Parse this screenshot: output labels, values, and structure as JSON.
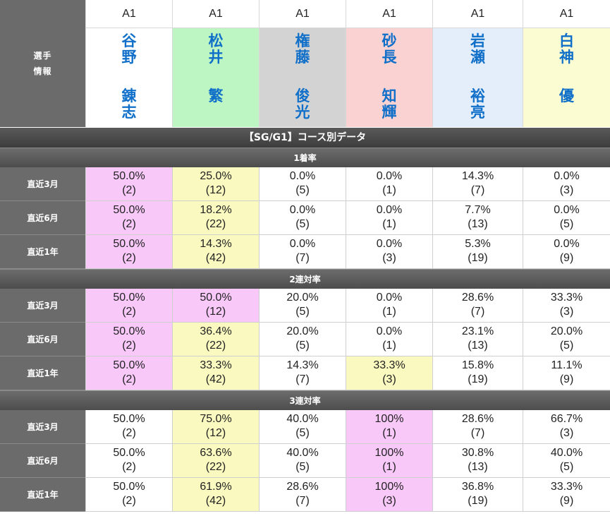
{
  "colors": {
    "header_bg": "#6b6b6b",
    "name_text": "#0f6fc9",
    "pink": "#f8c8f8",
    "yellow": "#fafac0",
    "green": "#bdf5c3",
    "gray": "#d3d3d3",
    "salmon": "#fad2d2",
    "lightblue": "#e3eefa",
    "paleyellow": "#fcfcd2",
    "white": "#ffffff"
  },
  "player_info_label": [
    "選手",
    "情報"
  ],
  "players": [
    {
      "grade": "A1",
      "surname": [
        "谷",
        "野"
      ],
      "given": [
        "錬",
        "志"
      ],
      "color": "white"
    },
    {
      "grade": "A1",
      "surname": [
        "松",
        "井"
      ],
      "given": [
        "繁"
      ],
      "color": "green"
    },
    {
      "grade": "A1",
      "surname": [
        "権",
        "藤"
      ],
      "given": [
        "俊",
        "光"
      ],
      "color": "gray"
    },
    {
      "grade": "A1",
      "surname": [
        "砂",
        "長"
      ],
      "given": [
        "知",
        "輝"
      ],
      "color": "salmon"
    },
    {
      "grade": "A1",
      "surname": [
        "岩",
        "瀬"
      ],
      "given": [
        "裕",
        "亮"
      ],
      "color": "lightblue"
    },
    {
      "grade": "A1",
      "surname": [
        "白",
        "神"
      ],
      "given": [
        "優"
      ],
      "color": "paleyellow"
    }
  ],
  "main_title": "【SG/G1】コース別データ",
  "sections": [
    {
      "title": "1着率",
      "rows": [
        {
          "label": "直近3月",
          "cells": [
            {
              "pct": "50.0%",
              "cnt": "(2)",
              "bg": "pink"
            },
            {
              "pct": "25.0%",
              "cnt": "(12)",
              "bg": "yellow"
            },
            {
              "pct": "0.0%",
              "cnt": "(5)",
              "bg": "white"
            },
            {
              "pct": "0.0%",
              "cnt": "(1)",
              "bg": "white"
            },
            {
              "pct": "14.3%",
              "cnt": "(7)",
              "bg": "white"
            },
            {
              "pct": "0.0%",
              "cnt": "(3)",
              "bg": "white"
            }
          ]
        },
        {
          "label": "直近6月",
          "cells": [
            {
              "pct": "50.0%",
              "cnt": "(2)",
              "bg": "pink"
            },
            {
              "pct": "18.2%",
              "cnt": "(22)",
              "bg": "yellow"
            },
            {
              "pct": "0.0%",
              "cnt": "(5)",
              "bg": "white"
            },
            {
              "pct": "0.0%",
              "cnt": "(1)",
              "bg": "white"
            },
            {
              "pct": "7.7%",
              "cnt": "(13)",
              "bg": "white"
            },
            {
              "pct": "0.0%",
              "cnt": "(5)",
              "bg": "white"
            }
          ]
        },
        {
          "label": "直近1年",
          "cells": [
            {
              "pct": "50.0%",
              "cnt": "(2)",
              "bg": "pink"
            },
            {
              "pct": "14.3%",
              "cnt": "(42)",
              "bg": "yellow"
            },
            {
              "pct": "0.0%",
              "cnt": "(7)",
              "bg": "white"
            },
            {
              "pct": "0.0%",
              "cnt": "(3)",
              "bg": "white"
            },
            {
              "pct": "5.3%",
              "cnt": "(19)",
              "bg": "white"
            },
            {
              "pct": "0.0%",
              "cnt": "(9)",
              "bg": "white"
            }
          ]
        }
      ]
    },
    {
      "title": "2連対率",
      "rows": [
        {
          "label": "直近3月",
          "cells": [
            {
              "pct": "50.0%",
              "cnt": "(2)",
              "bg": "pink"
            },
            {
              "pct": "50.0%",
              "cnt": "(12)",
              "bg": "pink"
            },
            {
              "pct": "20.0%",
              "cnt": "(5)",
              "bg": "white"
            },
            {
              "pct": "0.0%",
              "cnt": "(1)",
              "bg": "white"
            },
            {
              "pct": "28.6%",
              "cnt": "(7)",
              "bg": "white"
            },
            {
              "pct": "33.3%",
              "cnt": "(3)",
              "bg": "white"
            }
          ]
        },
        {
          "label": "直近6月",
          "cells": [
            {
              "pct": "50.0%",
              "cnt": "(2)",
              "bg": "pink"
            },
            {
              "pct": "36.4%",
              "cnt": "(22)",
              "bg": "yellow"
            },
            {
              "pct": "20.0%",
              "cnt": "(5)",
              "bg": "white"
            },
            {
              "pct": "0.0%",
              "cnt": "(1)",
              "bg": "white"
            },
            {
              "pct": "23.1%",
              "cnt": "(13)",
              "bg": "white"
            },
            {
              "pct": "20.0%",
              "cnt": "(5)",
              "bg": "white"
            }
          ]
        },
        {
          "label": "直近1年",
          "cells": [
            {
              "pct": "50.0%",
              "cnt": "(2)",
              "bg": "pink"
            },
            {
              "pct": "33.3%",
              "cnt": "(42)",
              "bg": "yellow"
            },
            {
              "pct": "14.3%",
              "cnt": "(7)",
              "bg": "white"
            },
            {
              "pct": "33.3%",
              "cnt": "(3)",
              "bg": "yellow"
            },
            {
              "pct": "15.8%",
              "cnt": "(19)",
              "bg": "white"
            },
            {
              "pct": "11.1%",
              "cnt": "(9)",
              "bg": "white"
            }
          ]
        }
      ]
    },
    {
      "title": "3連対率",
      "rows": [
        {
          "label": "直近3月",
          "cells": [
            {
              "pct": "50.0%",
              "cnt": "(2)",
              "bg": "white"
            },
            {
              "pct": "75.0%",
              "cnt": "(12)",
              "bg": "yellow"
            },
            {
              "pct": "40.0%",
              "cnt": "(5)",
              "bg": "white"
            },
            {
              "pct": "100%",
              "cnt": "(1)",
              "bg": "pink"
            },
            {
              "pct": "28.6%",
              "cnt": "(7)",
              "bg": "white"
            },
            {
              "pct": "66.7%",
              "cnt": "(3)",
              "bg": "white"
            }
          ]
        },
        {
          "label": "直近6月",
          "cells": [
            {
              "pct": "50.0%",
              "cnt": "(2)",
              "bg": "white"
            },
            {
              "pct": "63.6%",
              "cnt": "(22)",
              "bg": "yellow"
            },
            {
              "pct": "40.0%",
              "cnt": "(5)",
              "bg": "white"
            },
            {
              "pct": "100%",
              "cnt": "(1)",
              "bg": "pink"
            },
            {
              "pct": "30.8%",
              "cnt": "(13)",
              "bg": "white"
            },
            {
              "pct": "40.0%",
              "cnt": "(5)",
              "bg": "white"
            }
          ]
        },
        {
          "label": "直近1年",
          "cells": [
            {
              "pct": "50.0%",
              "cnt": "(2)",
              "bg": "white"
            },
            {
              "pct": "61.9%",
              "cnt": "(42)",
              "bg": "yellow"
            },
            {
              "pct": "28.6%",
              "cnt": "(7)",
              "bg": "white"
            },
            {
              "pct": "100%",
              "cnt": "(3)",
              "bg": "pink"
            },
            {
              "pct": "36.8%",
              "cnt": "(19)",
              "bg": "white"
            },
            {
              "pct": "33.3%",
              "cnt": "(9)",
              "bg": "white"
            }
          ]
        }
      ]
    }
  ]
}
